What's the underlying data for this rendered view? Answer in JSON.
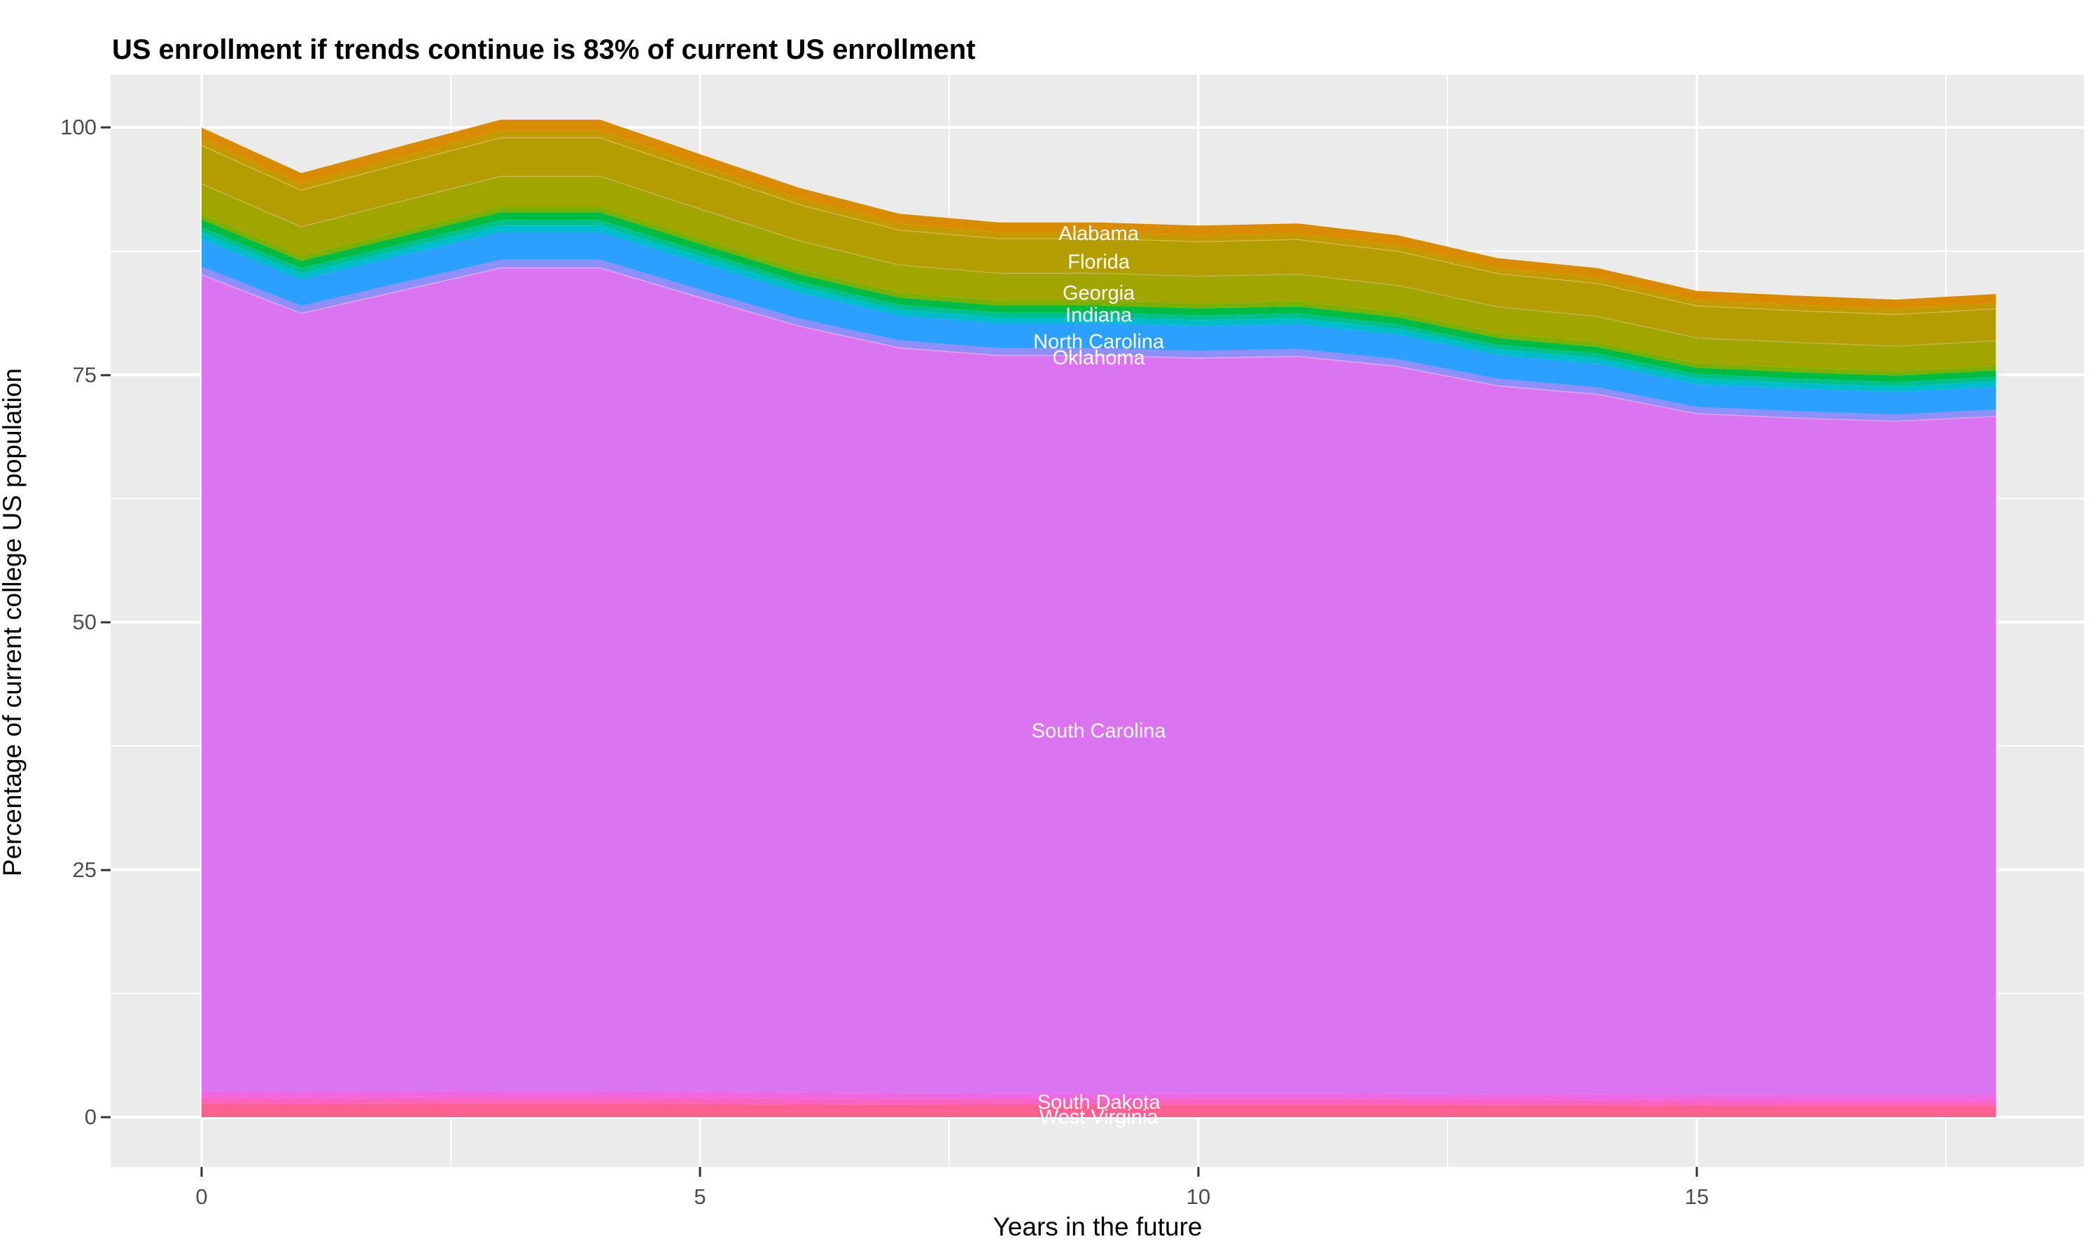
{
  "title": "US enrollment if trends continue is 83% of current US enrollment",
  "axes": {
    "x": {
      "title": "Years in the future",
      "major_ticks": [
        0,
        5,
        10,
        15
      ],
      "minor_ticks": [
        2.5,
        7.5,
        12.5,
        17.5
      ],
      "tick_labels": [
        "0",
        "5",
        "10",
        "15"
      ],
      "range": [
        0,
        18
      ]
    },
    "y": {
      "title": "Percentage of current college US population",
      "major_ticks": [
        0,
        25,
        50,
        75,
        100
      ],
      "minor_ticks": [
        12.5,
        37.5,
        62.5,
        87.5
      ],
      "tick_labels": [
        "0",
        "25",
        "50",
        "75",
        "100"
      ]
    }
  },
  "colors": {
    "panel_background": "#EBEBEB",
    "gridline": "#FFFFFF",
    "tick_text": "#4D4D4D",
    "axis_text": "#000000",
    "band_label_text": "#FFFFFF"
  },
  "chart_data": {
    "type": "area",
    "stacked": true,
    "title": "US enrollment if trends continue is 83% of current US enrollment",
    "xlabel": "Years in the future",
    "ylabel": "Percentage of current college US population",
    "x": [
      0,
      1,
      2,
      3,
      4,
      5,
      6,
      7,
      8,
      9,
      10,
      11,
      12,
      13,
      14,
      15,
      16,
      17,
      18
    ],
    "xlim": [
      0,
      18
    ],
    "ylim": [
      0,
      105
    ],
    "grid": true,
    "legend": "none (bands labeled inline in white)",
    "stack_totals": [
      100,
      95.4,
      98.1,
      100.8,
      100.8,
      97.3,
      93.9,
      91.3,
      90.4,
      90.4,
      90.1,
      90.3,
      89.1,
      86.8,
      85.8,
      83.5,
      83.0,
      82.6,
      83.2
    ],
    "series_order": "bottom to top",
    "series": [
      {
        "name": "West Virginia",
        "labeled": true,
        "color": "#FC6090",
        "values": [
          1.4,
          1.34,
          1.37,
          1.41,
          1.41,
          1.36,
          1.31,
          1.28,
          1.27,
          1.27,
          1.26,
          1.26,
          1.25,
          1.22,
          1.2,
          1.17,
          1.16,
          1.16,
          1.16
        ]
      },
      {
        "name": "other-states-pink",
        "labeled": false,
        "color": "#FA62C4",
        "values": [
          0.63,
          0.6,
          0.62,
          0.64,
          0.64,
          0.61,
          0.59,
          0.58,
          0.57,
          0.57,
          0.57,
          0.57,
          0.56,
          0.55,
          0.54,
          0.53,
          0.52,
          0.52,
          0.52
        ]
      },
      {
        "name": "South Dakota",
        "labeled": true,
        "color": "#EF68E3",
        "values": [
          0.62,
          0.59,
          0.61,
          0.62,
          0.62,
          0.6,
          0.58,
          0.57,
          0.56,
          0.56,
          0.56,
          0.56,
          0.55,
          0.54,
          0.53,
          0.52,
          0.51,
          0.51,
          0.52
        ]
      },
      {
        "name": "South Carolina",
        "labeled": true,
        "color": "#DA74F0",
        "values": [
          82.42,
          78.63,
          80.85,
          83.08,
          83.08,
          80.19,
          77.39,
          75.25,
          74.51,
          74.51,
          74.26,
          74.43,
          73.44,
          71.54,
          70.72,
          68.82,
          68.41,
          68.08,
          68.57
        ]
      },
      {
        "name": "hairline-light-orchid",
        "labeled": false,
        "color": "#E9A4F7",
        "values": [
          0.1,
          0.1,
          0.1,
          0.1,
          0.1,
          0.1,
          0.09,
          0.09,
          0.09,
          0.09,
          0.09,
          0.09,
          0.09,
          0.09,
          0.09,
          0.08,
          0.08,
          0.08,
          0.08
        ]
      },
      {
        "name": "Oklahoma",
        "labeled": true,
        "color": "#8F8FFC",
        "values": [
          0.77,
          0.73,
          0.76,
          0.78,
          0.78,
          0.75,
          0.72,
          0.7,
          0.7,
          0.7,
          0.69,
          0.7,
          0.69,
          0.67,
          0.66,
          0.64,
          0.64,
          0.64,
          0.64
        ]
      },
      {
        "name": "North Carolina",
        "labeled": true,
        "color": "#2BA0FF",
        "values": [
          2.77,
          2.64,
          2.72,
          2.79,
          2.79,
          2.7,
          2.6,
          2.53,
          2.5,
          2.5,
          2.5,
          2.5,
          2.47,
          2.4,
          2.38,
          2.31,
          2.3,
          2.29,
          2.3
        ]
      },
      {
        "name": "other-states-cyan",
        "labeled": false,
        "color": "#00BDCC",
        "values": [
          0.66,
          0.63,
          0.65,
          0.67,
          0.67,
          0.64,
          0.62,
          0.6,
          0.6,
          0.6,
          0.59,
          0.6,
          0.59,
          0.57,
          0.57,
          0.55,
          0.55,
          0.55,
          0.55
        ]
      },
      {
        "name": "other-states-teal",
        "labeled": false,
        "color": "#00C18D",
        "values": [
          0.55,
          0.52,
          0.54,
          0.55,
          0.55,
          0.54,
          0.52,
          0.5,
          0.5,
          0.5,
          0.5,
          0.5,
          0.49,
          0.48,
          0.47,
          0.46,
          0.46,
          0.45,
          0.46
        ]
      },
      {
        "name": "Indiana",
        "labeled": true,
        "color": "#00BC42",
        "values": [
          0.77,
          0.73,
          0.76,
          0.78,
          0.78,
          0.75,
          0.72,
          0.7,
          0.7,
          0.7,
          0.69,
          0.7,
          0.69,
          0.67,
          0.66,
          0.64,
          0.64,
          0.64,
          0.64
        ]
      },
      {
        "name": "other-states-yellowgreen",
        "labeled": false,
        "color": "#7CB000",
        "values": [
          0.55,
          0.52,
          0.54,
          0.55,
          0.55,
          0.54,
          0.52,
          0.5,
          0.5,
          0.5,
          0.5,
          0.5,
          0.49,
          0.48,
          0.47,
          0.46,
          0.46,
          0.45,
          0.46
        ]
      },
      {
        "name": "Georgia",
        "labeled": true,
        "color": "#A1A500",
        "values": [
          3.02,
          2.88,
          2.96,
          3.04,
          3.04,
          2.94,
          2.84,
          2.76,
          2.73,
          2.73,
          2.72,
          2.73,
          2.69,
          2.62,
          2.59,
          2.52,
          2.51,
          2.49,
          2.51
        ]
      },
      {
        "name": "hairline-olive",
        "labeled": false,
        "color": "#BEB84C",
        "values": [
          0.08,
          0.08,
          0.08,
          0.08,
          0.08,
          0.08,
          0.08,
          0.07,
          0.07,
          0.07,
          0.07,
          0.07,
          0.07,
          0.07,
          0.07,
          0.07,
          0.07,
          0.07,
          0.07
        ]
      },
      {
        "name": "Florida",
        "labeled": true,
        "color": "#B39D00",
        "values": [
          3.79,
          3.62,
          3.72,
          3.82,
          3.82,
          3.69,
          3.56,
          3.46,
          3.43,
          3.43,
          3.42,
          3.42,
          3.38,
          3.29,
          3.25,
          3.16,
          3.15,
          3.13,
          3.15
        ]
      },
      {
        "name": "hairline-gold",
        "labeled": false,
        "color": "#D3BC4E",
        "values": [
          0.08,
          0.08,
          0.08,
          0.08,
          0.08,
          0.08,
          0.08,
          0.07,
          0.07,
          0.07,
          0.07,
          0.07,
          0.07,
          0.07,
          0.07,
          0.07,
          0.07,
          0.07,
          0.07
        ]
      },
      {
        "name": "other-states-gold",
        "labeled": false,
        "color": "#C59900",
        "values": [
          0.66,
          0.63,
          0.65,
          0.67,
          0.67,
          0.64,
          0.62,
          0.6,
          0.6,
          0.6,
          0.59,
          0.6,
          0.59,
          0.57,
          0.57,
          0.55,
          0.55,
          0.55,
          0.55
        ]
      },
      {
        "name": "Alabama",
        "labeled": true,
        "color": "#D98C00",
        "values": [
          1.11,
          1.06,
          1.09,
          1.12,
          1.12,
          1.08,
          1.04,
          1.01,
          1.0,
          1.0,
          1.0,
          1.0,
          0.99,
          0.96,
          0.95,
          0.93,
          0.92,
          0.92,
          0.92
        ]
      }
    ],
    "band_labels": [
      "Alabama",
      "Florida",
      "Georgia",
      "Indiana",
      "North Carolina",
      "Oklahoma",
      "South Carolina",
      "South Dakota",
      "West Virginia"
    ]
  }
}
